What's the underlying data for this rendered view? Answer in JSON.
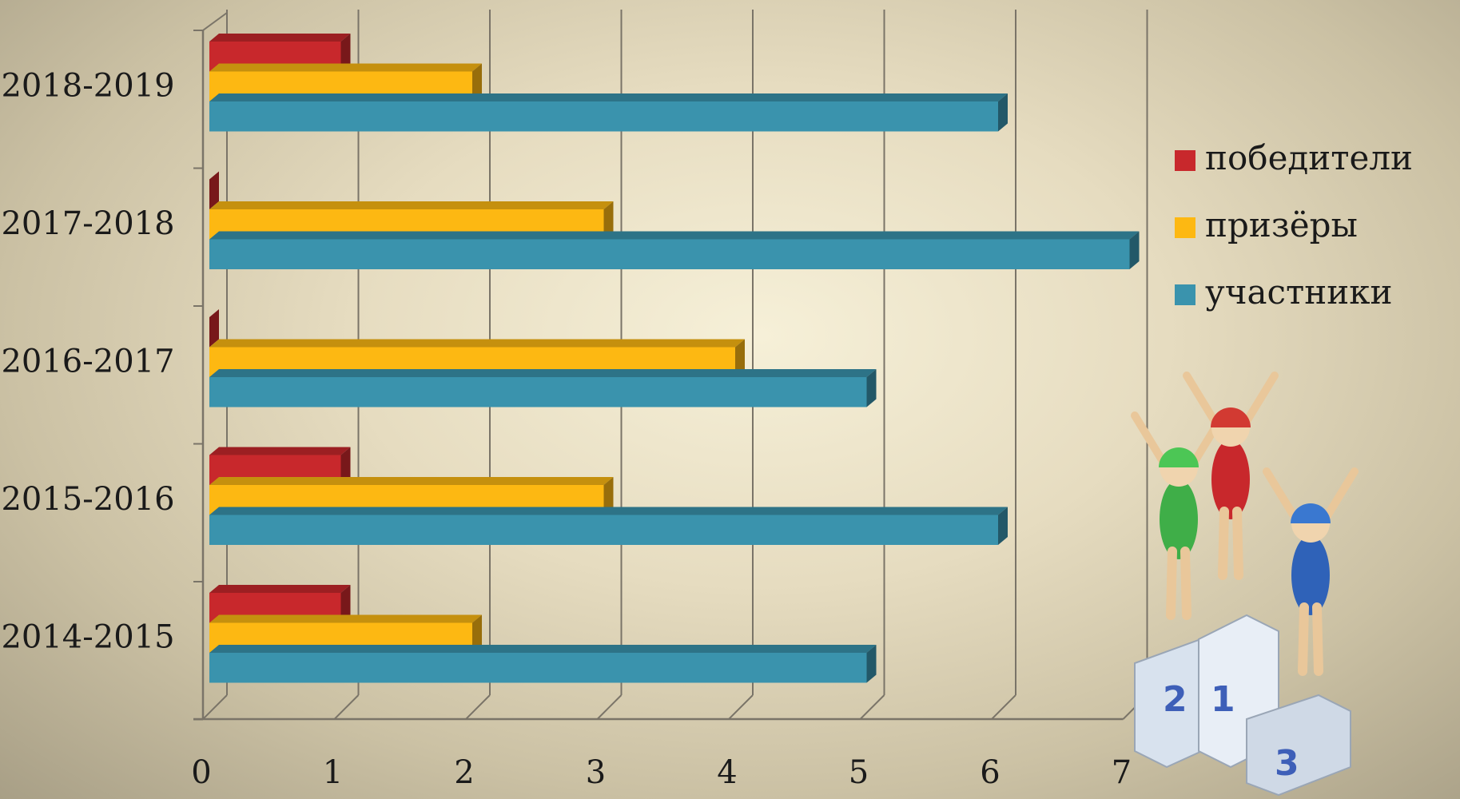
{
  "chart_data": {
    "type": "bar",
    "orientation": "horizontal",
    "style": "3d-clustered",
    "categories": [
      "2018-2019",
      "2017-2018",
      "2016-2017",
      "2015-2016",
      "2014-2015"
    ],
    "series": [
      {
        "name": "победители",
        "color": "#c8282c",
        "values": [
          1,
          0,
          0,
          1,
          1
        ]
      },
      {
        "name": "призёры",
        "color": "#fdb812",
        "values": [
          2,
          3,
          4,
          3,
          2
        ]
      },
      {
        "name": "участники",
        "color": "#3a93ad",
        "values": [
          6,
          7,
          5,
          6,
          5
        ]
      }
    ],
    "x_ticks": [
      "0",
      "1",
      "2",
      "3",
      "4",
      "5",
      "6",
      "7"
    ],
    "xlim": [
      0,
      7
    ],
    "grid": true,
    "legend_position": "right",
    "decoration": "cartoon-podium-winners-illustration"
  }
}
